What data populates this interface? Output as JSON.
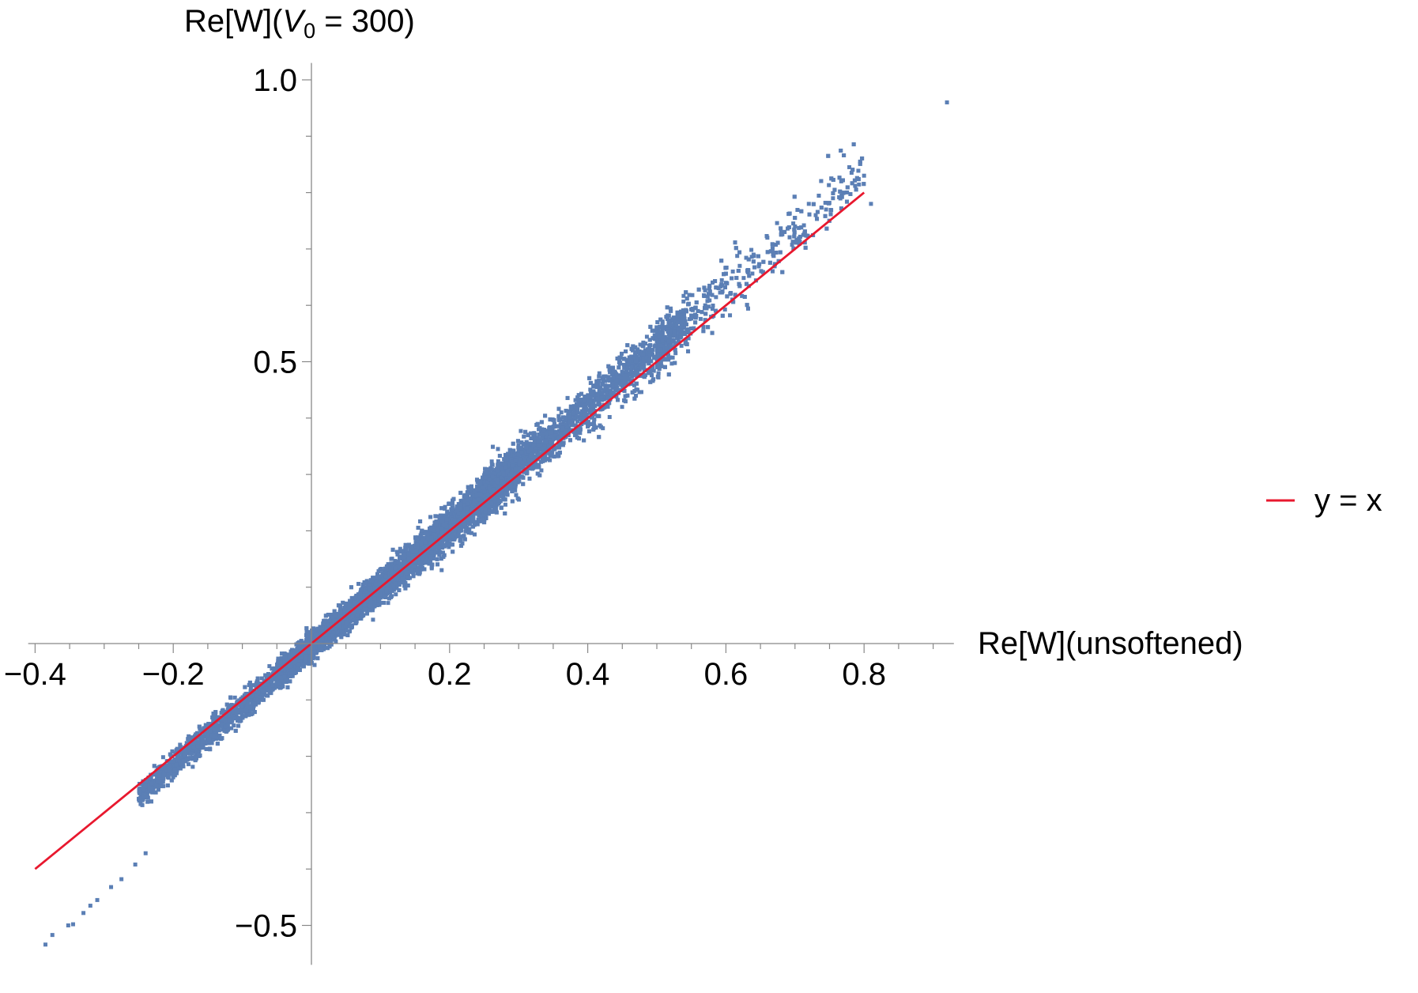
{
  "chart_data": {
    "type": "scatter",
    "xlabel": "Re[W](unsoftened)",
    "ylabel": {
      "prefix": "Re[W](",
      "var": "V",
      "sub": "0",
      "suffix": " = 300)"
    },
    "xlim": [
      -0.41,
      0.93
    ],
    "ylim": [
      -0.57,
      1.03
    ],
    "x_ticks": [
      {
        "value": -0.4,
        "label": "−0.4"
      },
      {
        "value": -0.2,
        "label": "−0.2"
      },
      {
        "value": 0.2,
        "label": "0.2"
      },
      {
        "value": 0.4,
        "label": "0.4"
      },
      {
        "value": 0.6,
        "label": "0.6"
      },
      {
        "value": 0.8,
        "label": "0.8"
      }
    ],
    "y_ticks": [
      {
        "value": -0.5,
        "label": "−0.5"
      },
      {
        "value": 0.5,
        "label": "0.5"
      },
      {
        "value": 1.0,
        "label": "1.0"
      }
    ],
    "grid": false,
    "legend_position": "right",
    "colors": {
      "points": "#5b7fb5",
      "line": "#e8182e",
      "axes": "#888888"
    },
    "series": [
      {
        "name": "",
        "kind": "scatter",
        "density_model": {
          "slope": 1.06,
          "intercept": -0.005,
          "x_range": [
            -0.39,
            0.92
          ],
          "count": 12000,
          "spread": 0.012
        },
        "points": [
          {
            "x": -0.385,
            "y": -0.534
          },
          {
            "x": -0.375,
            "y": -0.517
          },
          {
            "x": -0.352,
            "y": -0.5
          },
          {
            "x": -0.345,
            "y": -0.498
          },
          {
            "x": -0.33,
            "y": -0.478
          },
          {
            "x": -0.32,
            "y": -0.465
          },
          {
            "x": -0.31,
            "y": -0.455
          },
          {
            "x": -0.29,
            "y": -0.432
          },
          {
            "x": -0.275,
            "y": -0.418
          },
          {
            "x": -0.255,
            "y": -0.392
          },
          {
            "x": -0.24,
            "y": -0.372
          },
          {
            "x": 0.787,
            "y": 0.812
          },
          {
            "x": 0.8,
            "y": 0.83
          },
          {
            "x": 0.81,
            "y": 0.78
          },
          {
            "x": 0.77,
            "y": 0.8
          },
          {
            "x": 0.72,
            "y": 0.78
          },
          {
            "x": 0.73,
            "y": 0.76
          },
          {
            "x": 0.68,
            "y": 0.73
          },
          {
            "x": 0.66,
            "y": 0.72
          },
          {
            "x": 0.7,
            "y": 0.74
          },
          {
            "x": 0.745,
            "y": 0.77
          },
          {
            "x": 0.755,
            "y": 0.79
          },
          {
            "x": 0.64,
            "y": 0.69
          },
          {
            "x": 0.62,
            "y": 0.67
          },
          {
            "x": 0.61,
            "y": 0.66
          },
          {
            "x": 0.57,
            "y": 0.6
          },
          {
            "x": 0.6,
            "y": 0.64
          },
          {
            "x": 0.55,
            "y": 0.58
          },
          {
            "x": 0.53,
            "y": 0.57
          },
          {
            "x": 0.92,
            "y": 0.96
          }
        ]
      },
      {
        "name": "y = x",
        "kind": "line",
        "x": [
          -0.4,
          0.8
        ],
        "y": [
          -0.4,
          0.8
        ]
      }
    ]
  }
}
